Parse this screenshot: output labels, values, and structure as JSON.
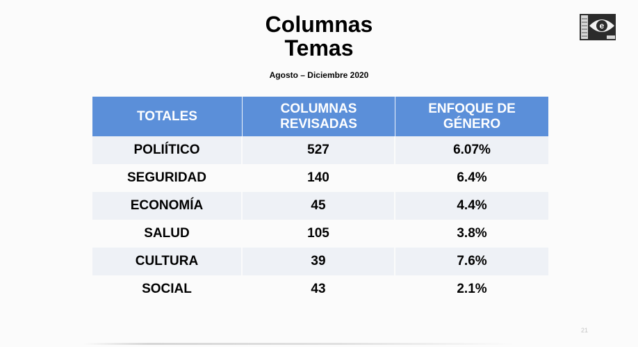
{
  "slide": {
    "title_line1": "Columnas",
    "title_line2": "Temas",
    "subtitle": "Agosto – Diciembre 2020",
    "slide_number": "21"
  },
  "logo": {
    "icon": "eye-e-logo-icon"
  },
  "table": {
    "header": {
      "col1": "TOTALES",
      "col2_line1": "COLUMNAS",
      "col2_line2": "REVISADAS",
      "col3_line1": "ENFOQUE DE",
      "col3_line2": "GÉNERO"
    },
    "header_color": "#5b8fd9",
    "rows": [
      {
        "topic": "POLIÍTICO",
        "columns_reviewed": "527",
        "gender_focus": "6.07%"
      },
      {
        "topic": "SEGURIDAD",
        "columns_reviewed": "140",
        "gender_focus": "6.4%"
      },
      {
        "topic": "ECONOMÍA",
        "columns_reviewed": "45",
        "gender_focus": "4.4%"
      },
      {
        "topic": "SALUD",
        "columns_reviewed": "105",
        "gender_focus": "3.8%"
      },
      {
        "topic": "CULTURA",
        "columns_reviewed": "39",
        "gender_focus": "7.6%"
      },
      {
        "topic": "SOCIAL",
        "columns_reviewed": "43",
        "gender_focus": "2.1%"
      }
    ]
  }
}
